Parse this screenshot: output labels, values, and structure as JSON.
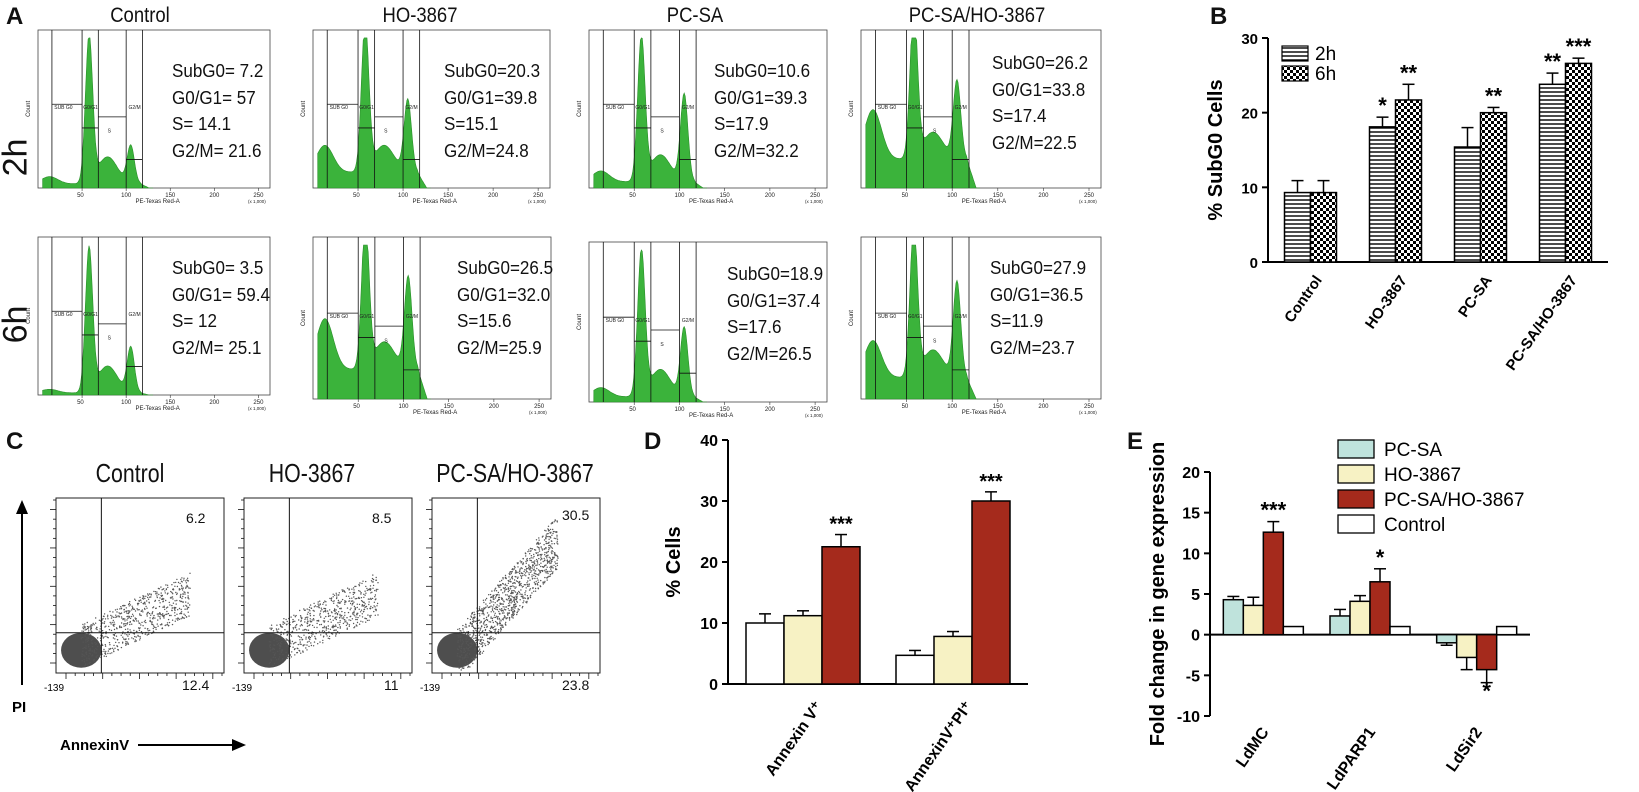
{
  "panel_labels": {
    "a": "A",
    "b": "B",
    "c": "C",
    "d": "D",
    "e": "E"
  },
  "panel_a": {
    "column_titles": [
      "Control",
      "HO-3867",
      "PC-SA",
      "PC-SA/HO-3867"
    ],
    "row_labels": [
      "2h",
      "6h"
    ],
    "x_axis_label": "PE-Texas Red-A",
    "y_axis_label": "Count",
    "x_ticks": [
      "50",
      "100",
      "150",
      "200",
      "250"
    ],
    "x_unit": "(x 1,000)",
    "gate_labels": [
      "SUB G0",
      "G0/G1",
      "S",
      "G2/M"
    ],
    "stats": [
      {
        "subg0": "SubG0= 7.2",
        "g0g1": "G0/G1=  57",
        "s": "S= 14.1",
        "g2m": "G2/M= 21.6"
      },
      {
        "subg0": "SubG0=20.3",
        "g0g1": "G0/G1=39.8",
        "s": "S=15.1",
        "g2m": "G2/M=24.8"
      },
      {
        "subg0": "SubG0=10.6",
        "g0g1": "G0/G1=39.3",
        "s": "S=17.9",
        "g2m": "G2/M=32.2"
      },
      {
        "subg0": "SubG0=26.2",
        "g0g1": "G0/G1=33.8",
        "s": "S=17.4",
        "g2m": "G2/M=22.5"
      },
      {
        "subg0": "SubG0= 3.5",
        "g0g1": "G0/G1= 59.4",
        "s": "S= 12",
        "g2m": "G2/M= 25.1"
      },
      {
        "subg0": "SubG0=26.5",
        "g0g1": "G0/G1=32.0",
        "s": "S=15.6",
        "g2m": "G2/M=25.9"
      },
      {
        "subg0": "SubG0=18.9",
        "g0g1": "G0/G1=37.4",
        "s": "S=17.6",
        "g2m": "G2/M=26.5"
      },
      {
        "subg0": "SubG0=27.9",
        "g0g1": "G0/G1=36.5",
        "s": "S=11.9",
        "g2m": "G2/M=23.7"
      }
    ]
  },
  "panel_c": {
    "titles": [
      "Control",
      "HO-3867",
      "PC-SA/HO-3867"
    ],
    "upper_right": [
      "6.2",
      "8.5",
      "30.5"
    ],
    "lower_right": [
      "12.4",
      "11",
      "23.8"
    ],
    "x_label": "AnnexinV",
    "y_label": "PI",
    "tick_min": "-139"
  },
  "colors": {
    "histogram": "#3bb33b",
    "dark_red": "#a52a1c",
    "light_yellow": "#f7f2c4",
    "light_teal": "#bfe3dc",
    "white": "#ffffff",
    "scatter": "#555555"
  },
  "chart_data": [
    {
      "id": "B",
      "type": "bar",
      "ylabel": "% SubG0 Cells",
      "ylim": [
        0,
        30
      ],
      "yticks": [
        0,
        10,
        20,
        30
      ],
      "categories": [
        "Control",
        "HO-3867",
        "PC-SA",
        "PC-SA/HO-3867"
      ],
      "series": [
        {
          "name": "2h",
          "pattern": "horizontal-stripes",
          "values": [
            9.3,
            18.1,
            15.4,
            23.8
          ],
          "errors": [
            1.6,
            1.3,
            2.6,
            1.5
          ],
          "sig": [
            "",
            "*",
            "",
            "**"
          ]
        },
        {
          "name": "6h",
          "pattern": "checker",
          "values": [
            9.3,
            21.7,
            20.0,
            26.6
          ],
          "errors": [
            1.6,
            2.1,
            0.7,
            0.7
          ],
          "sig": [
            "",
            "**",
            "**",
            "***"
          ]
        }
      ],
      "legend": "top-left"
    },
    {
      "id": "D",
      "type": "bar",
      "ylabel": "% Cells",
      "ylim": [
        0,
        40
      ],
      "yticks": [
        0,
        10,
        20,
        30,
        40
      ],
      "categories": [
        "Annexin V⁺",
        "AnnexinV⁺PI⁺"
      ],
      "series": [
        {
          "name": "Control",
          "values": [
            10.0,
            4.7
          ],
          "errors": [
            1.5,
            0.8
          ],
          "sig": [
            "",
            ""
          ]
        },
        {
          "name": "HO-3867",
          "values": [
            11.2,
            7.8
          ],
          "errors": [
            0.8,
            0.8
          ],
          "sig": [
            "",
            ""
          ]
        },
        {
          "name": "PC-SA/HO-3867",
          "values": [
            22.5,
            30.0
          ],
          "errors": [
            2.0,
            1.5
          ],
          "sig": [
            "***",
            "***"
          ]
        }
      ]
    },
    {
      "id": "E",
      "type": "bar",
      "ylabel": "Fold change in gene expression",
      "ylim": [
        -10,
        20
      ],
      "yticks": [
        -10,
        -5,
        0,
        5,
        10,
        15,
        20
      ],
      "categories": [
        "LdMC",
        "LdPARP1",
        "LdSir2"
      ],
      "series": [
        {
          "name": "PC-SA",
          "values": [
            4.3,
            2.3,
            -1.0
          ],
          "errors": [
            0.4,
            0.8,
            0.3
          ],
          "sig": [
            "",
            "",
            ""
          ]
        },
        {
          "name": "HO-3867",
          "values": [
            3.6,
            4.1,
            -2.8
          ],
          "errors": [
            1.0,
            0.7,
            1.5
          ],
          "sig": [
            "",
            "",
            ""
          ]
        },
        {
          "name": "PC-SA/HO-3867",
          "values": [
            12.6,
            6.5,
            -4.3
          ],
          "errors": [
            1.3,
            1.6,
            1.6
          ],
          "sig": [
            "***",
            "*",
            "*"
          ]
        },
        {
          "name": "Control",
          "values": [
            1.0,
            1.0,
            1.0
          ],
          "errors": [
            0,
            0,
            0
          ],
          "sig": [
            "",
            "",
            ""
          ]
        }
      ],
      "legend": "top-right"
    }
  ]
}
